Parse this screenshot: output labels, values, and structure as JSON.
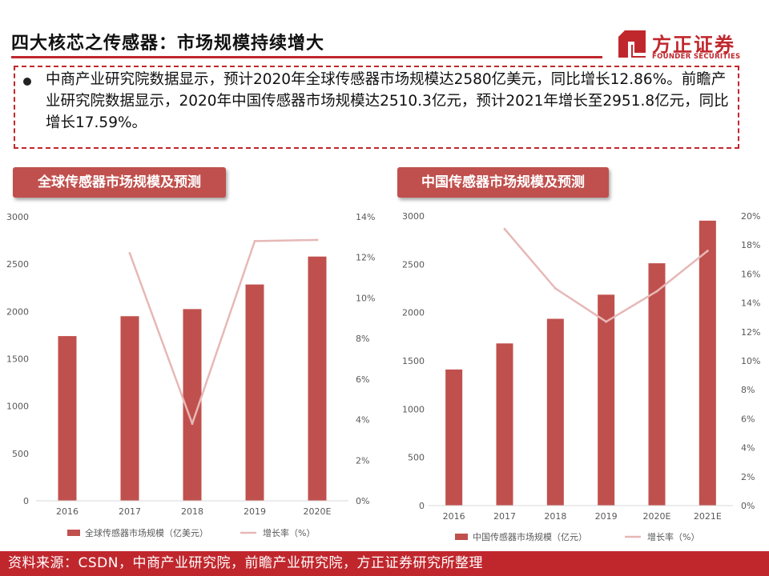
{
  "page": {
    "title": "四大核芯之传感器：市场规模持续增大",
    "summary": "中商产业研究院数据显示，预计2020年全球传感器市场规模达2580亿美元，同比增长12.86%。前瞻产业研究院数据显示，2020年中国传感器市场规模达2510.3亿元，预计2021年增长至2951.8亿元，同比增长17.59%。",
    "footer": "资料来源：CSDN，中商产业研究院，前瞻产业研究院，方正证券研究所整理",
    "logo": {
      "name_cn": "方正证券",
      "name_en": "FOUNDER SECURITIES"
    },
    "colors": {
      "accent": "#c0272d",
      "bar": "#c0504d",
      "line": "#e6b8b7"
    }
  },
  "chart_data": [
    {
      "type": "bar",
      "header": "全球传感器市场规模及预测",
      "categories": [
        "2016",
        "2017",
        "2018",
        "2019",
        "2020E"
      ],
      "series": [
        {
          "name": "全球传感器市场规模（亿美元）",
          "kind": "bar",
          "axis": "left",
          "values": [
            1740,
            1950,
            2025,
            2285,
            2580
          ]
        },
        {
          "name": "增长率（%）",
          "kind": "line",
          "axis": "right",
          "values": [
            null,
            12.2,
            3.8,
            12.8,
            12.86
          ]
        }
      ],
      "y_left": {
        "min": 0,
        "max": 3000,
        "ticks": [
          "0",
          "500",
          "1000",
          "1500",
          "2000",
          "2500",
          "3000"
        ]
      },
      "y_right": {
        "min": 0,
        "max": 14,
        "ticks": [
          "0%",
          "2%",
          "4%",
          "6%",
          "8%",
          "10%",
          "12%",
          "14%"
        ]
      }
    },
    {
      "type": "bar",
      "header": "中国传感器市场规模及预测",
      "categories": [
        "2016",
        "2017",
        "2018",
        "2019",
        "2020E",
        "2021E"
      ],
      "series": [
        {
          "name": "中国传感器市场规模（亿元）",
          "kind": "bar",
          "axis": "left",
          "values": [
            1410,
            1680,
            1935,
            2185,
            2510.3,
            2951.8
          ]
        },
        {
          "name": "增长率（%）",
          "kind": "line",
          "axis": "right",
          "values": [
            null,
            19.1,
            15.0,
            12.7,
            14.8,
            17.59
          ]
        }
      ],
      "y_left": {
        "min": 0,
        "max": 3000,
        "ticks": [
          "0",
          "500",
          "1000",
          "1500",
          "2000",
          "2500",
          "3000"
        ]
      },
      "y_right": {
        "min": 0,
        "max": 20,
        "ticks": [
          "0%",
          "2%",
          "4%",
          "6%",
          "8%",
          "10%",
          "12%",
          "14%",
          "16%",
          "18%",
          "20%"
        ]
      }
    }
  ]
}
